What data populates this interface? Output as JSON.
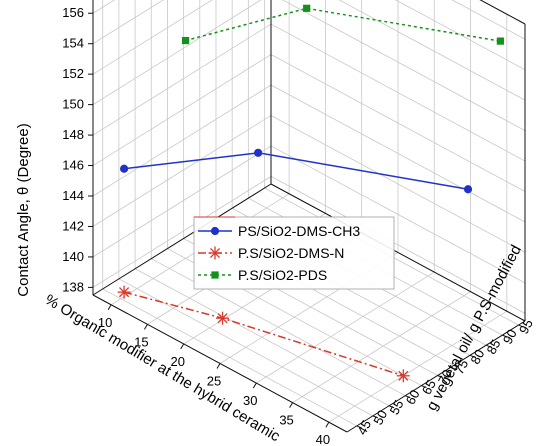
{
  "chart_data": {
    "type": "line",
    "subtype": "3d-line",
    "title": "",
    "zlabel": "Contact Angle, θ (Degree)",
    "xlabel": "% Organic modifier at the hybrid ceramic",
    "ylabel": "g vegetal oil/ g P.S-modified",
    "z_ticks": [
      "138",
      "140",
      "142",
      "144",
      "146",
      "148",
      "150",
      "152",
      "154",
      "156"
    ],
    "x_ticks": [
      "10",
      "15",
      "20",
      "25",
      "30",
      "35",
      "40"
    ],
    "y_ticks": [
      "45",
      "50",
      "55",
      "60",
      "65",
      "70",
      "75",
      "80",
      "85",
      "90",
      "95"
    ],
    "zlim": [
      137.5,
      157
    ],
    "xlim": [
      7.5,
      42.5
    ],
    "ylim": [
      42,
      97
    ],
    "series": [
      {
        "name": "PS/SiO2-DMS-CH3",
        "color": "#1f33c9",
        "marker": "circle",
        "line": "solid",
        "points": [
          {
            "x": 10,
            "y": 46,
            "z": 145.9
          },
          {
            "x": 20,
            "y": 65,
            "z": 147.0
          },
          {
            "x": 40,
            "y": 85,
            "z": 147.1
          }
        ]
      },
      {
        "name": "P.S/SiO2-DMS-N",
        "color": "#d83a2c",
        "marker": "asterisk",
        "line": "dash-dot",
        "points": [
          {
            "x": 10,
            "y": 46,
            "z": 137.8
          },
          {
            "x": 20,
            "y": 54,
            "z": 137.6
          },
          {
            "x": 40,
            "y": 65,
            "z": 137.5
          }
        ]
      },
      {
        "name": "P.S/SiO2-PDS",
        "color": "#14911b",
        "marker": "square",
        "line": "dotted",
        "points": [
          {
            "x": 10,
            "y": 65,
            "z": 151.8
          },
          {
            "x": 20,
            "y": 80,
            "z": 154.5
          },
          {
            "x": 40,
            "y": 95,
            "z": 155.5
          }
        ]
      }
    ],
    "legend_position": "center-left",
    "grid": true
  }
}
